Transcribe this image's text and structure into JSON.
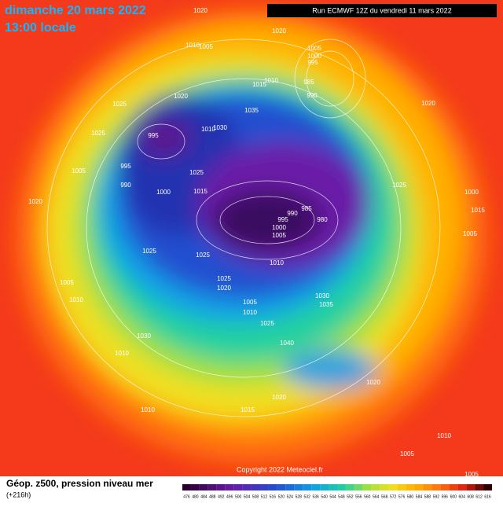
{
  "header": {
    "title": "dimanche 20 mars 2022",
    "subtitle": "13:00 locale",
    "run": "Run ECMWF 12Z du vendredi 11 mars 2022"
  },
  "map": {
    "isobar_labels": [
      "1020",
      "1020",
      "1010",
      "1005",
      "1005",
      "1000",
      "995",
      "985",
      "1010",
      "1015",
      "990",
      "1025",
      "1020",
      "1020",
      "1035",
      "995",
      "1030",
      "1010",
      "1025",
      "1005",
      "995",
      "990",
      "1000",
      "1025",
      "1015",
      "1020",
      "1025",
      "1000",
      "1015",
      "1005",
      "995",
      "990",
      "985",
      "980",
      "1000",
      "1005",
      "1010",
      "1025",
      "1025",
      "1025",
      "1020",
      "1005",
      "1010",
      "1005",
      "1010",
      "1030",
      "1035",
      "1025",
      "1030",
      "1040",
      "1010",
      "1020",
      "1020",
      "1015",
      "1010",
      "1005",
      "1010",
      "1005"
    ]
  },
  "footer": {
    "caption": "Géop. z500, pression niveau mer",
    "lead": "(+216h)",
    "copyright": "Copyright 2022 Meteociel.fr",
    "colorbar": [
      476,
      480,
      484,
      488,
      492,
      496,
      500,
      504,
      508,
      512,
      516,
      520,
      524,
      528,
      532,
      536,
      540,
      544,
      548,
      552,
      556,
      560,
      564,
      568,
      572,
      576,
      580,
      584,
      588,
      592,
      596,
      600,
      604,
      608,
      612,
      616
    ]
  }
}
